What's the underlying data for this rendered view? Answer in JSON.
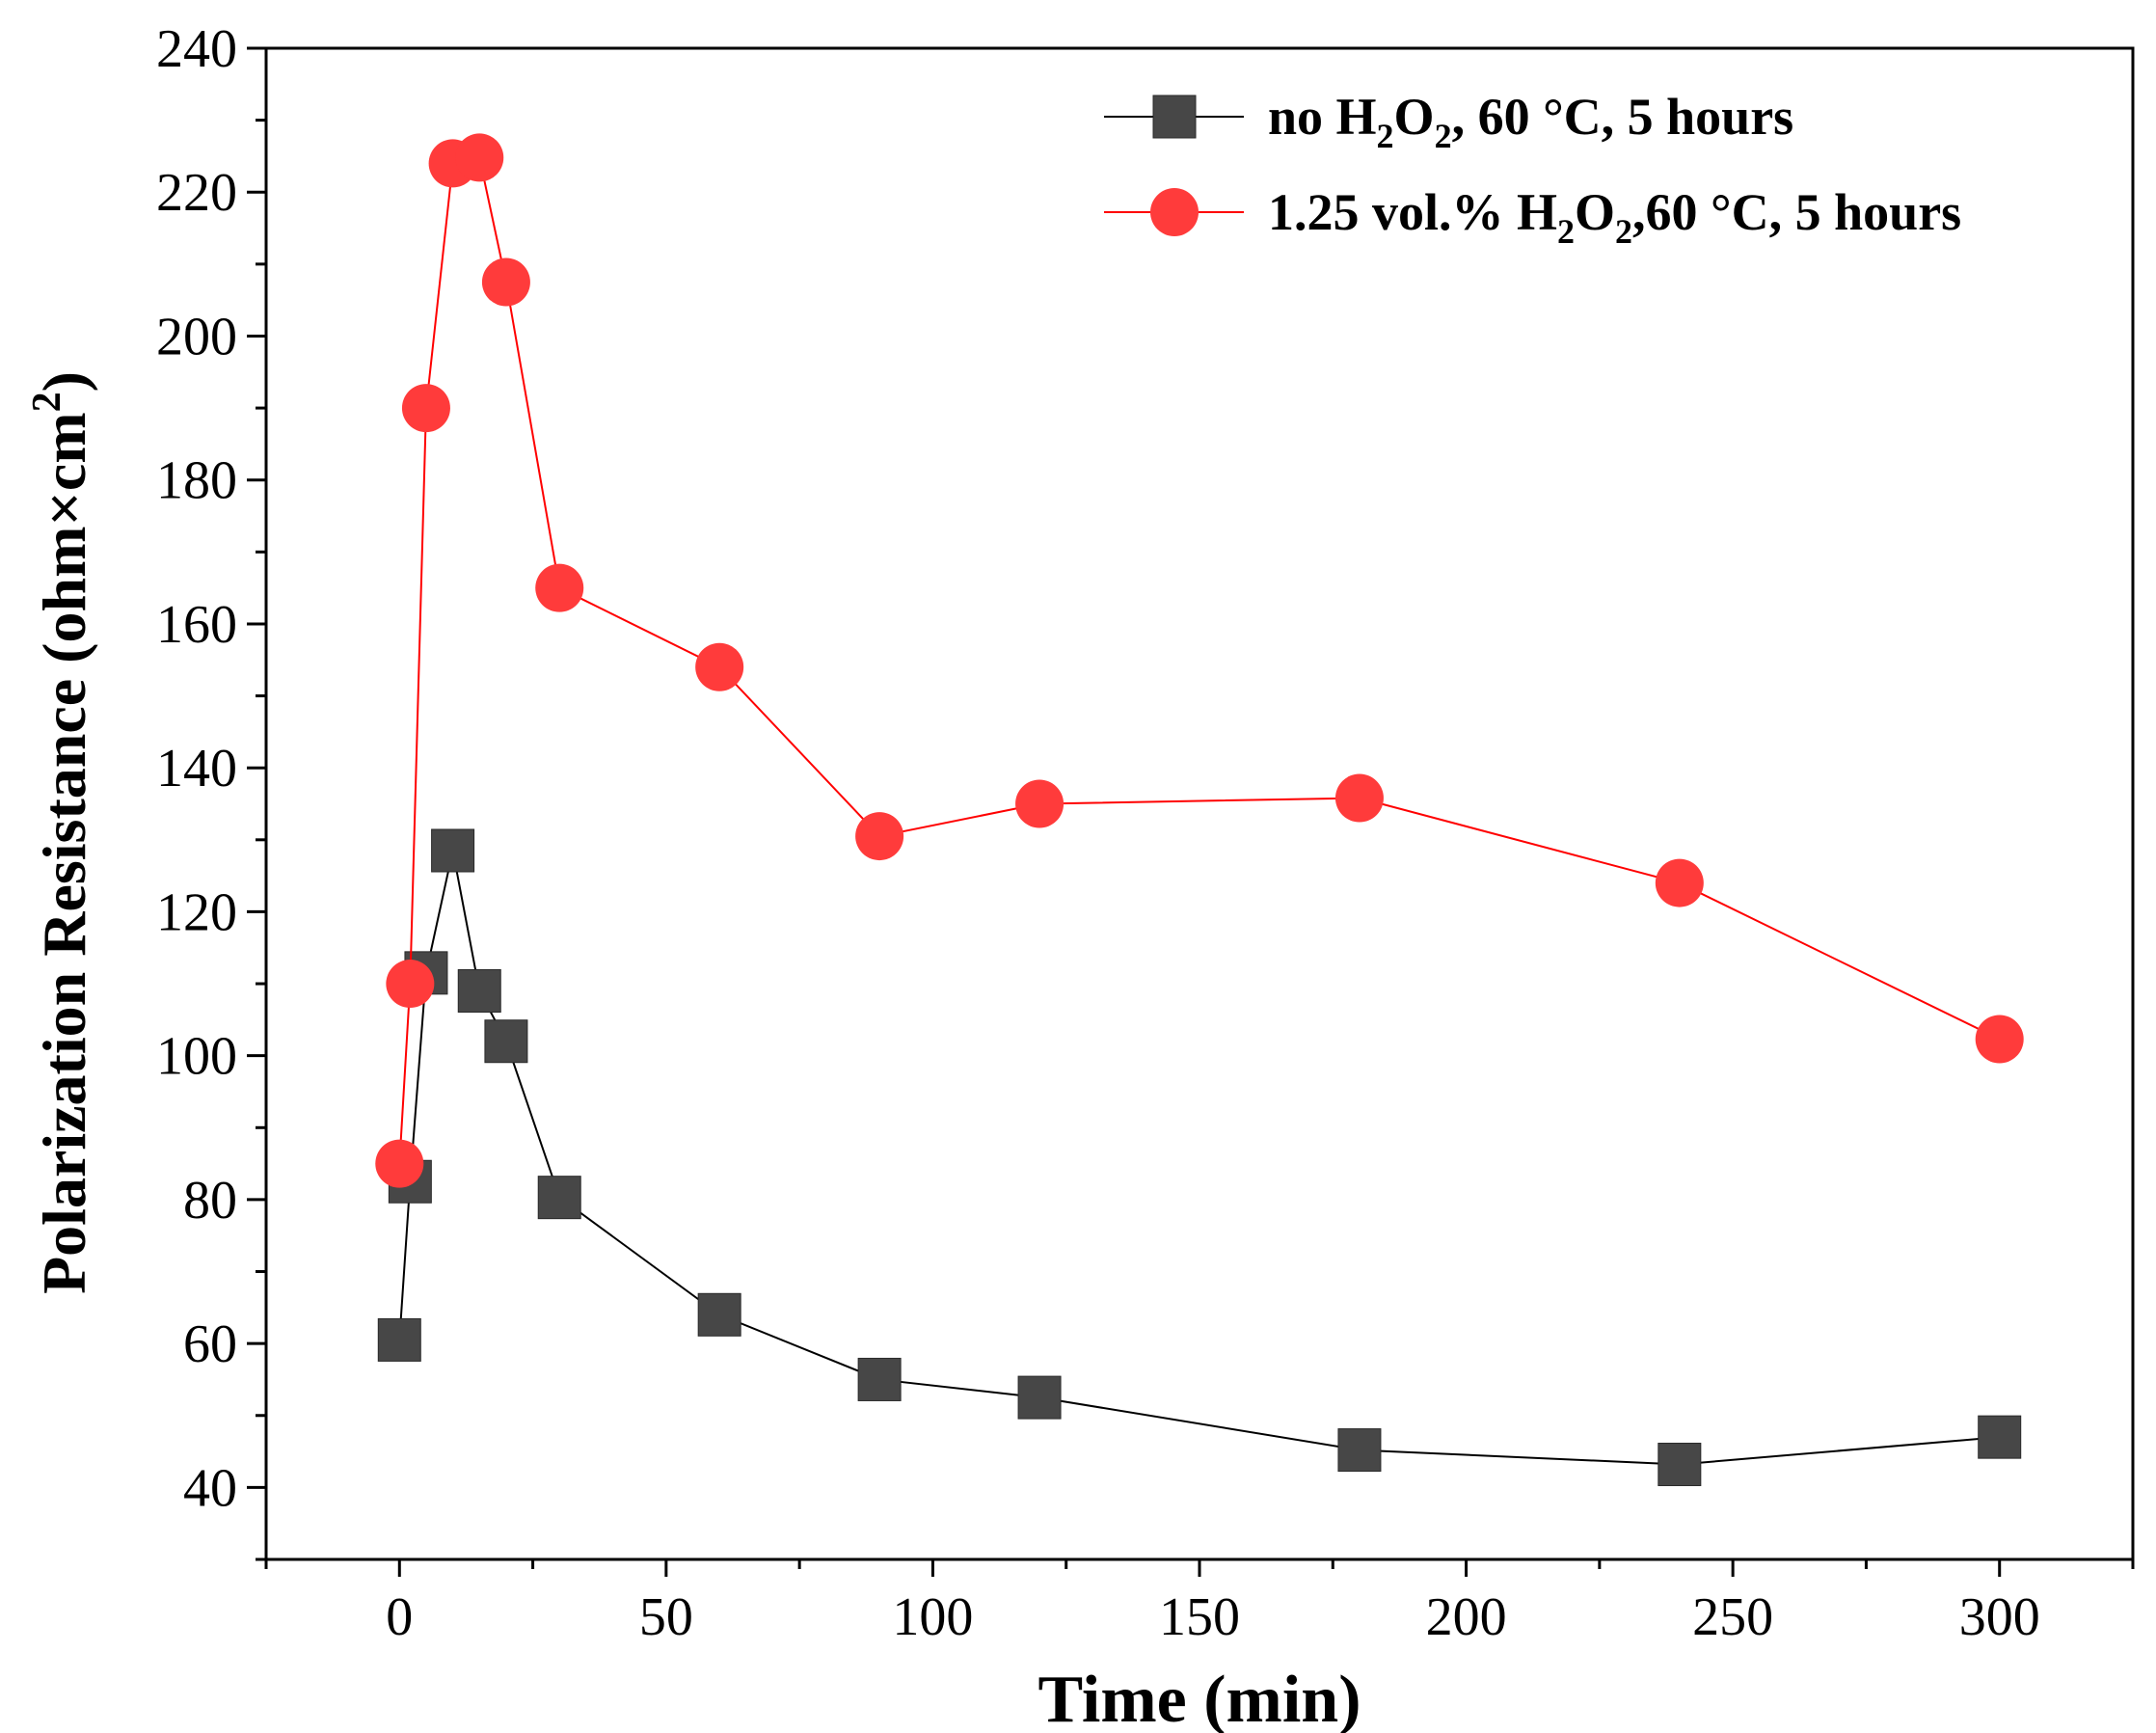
{
  "chart_data": {
    "type": "line",
    "title": "",
    "xlabel": "Time (min)",
    "ylabel": {
      "main": "Polarization Resistance (ohm×cm",
      "superscript": "2",
      "close": ")"
    },
    "xlim": [
      -25,
      325
    ],
    "ylim": [
      30,
      240
    ],
    "xticks": [
      0,
      50,
      100,
      150,
      200,
      250,
      300
    ],
    "yticks": [
      40,
      60,
      80,
      100,
      120,
      140,
      160,
      180,
      200,
      220,
      240
    ],
    "grid": false,
    "legend_position": "top-right",
    "series": [
      {
        "name": "no H2O2, 60 °C, 5 hours",
        "legend": {
          "pre": "no H",
          "sub1": "2",
          "mid": "O",
          "sub2": "2",
          "post": ", 60 °C, 5 hours"
        },
        "color": "#474747",
        "line_color": "#000000",
        "marker": "square",
        "x": [
          0,
          2,
          5,
          10,
          15,
          20,
          30,
          60,
          90,
          120,
          180,
          240,
          300
        ],
        "y": [
          60.5,
          82.5,
          111.5,
          128.5,
          109,
          102,
          80.3,
          64,
          55,
          52.5,
          45.2,
          43.2,
          47
        ]
      },
      {
        "name": "1.25 vol.% H2O2,60 °C, 5 hours",
        "legend": {
          "pre": "1.25 vol.% H",
          "sub1": "2",
          "mid": "O",
          "sub2": "2",
          "post": ",60 °C, 5 hours"
        },
        "color": "#ff3b3b",
        "line_color": "#ff0000",
        "marker": "circle",
        "x": [
          0,
          2,
          5,
          10,
          15,
          20,
          30,
          60,
          90,
          120,
          180,
          240,
          300
        ],
        "y": [
          85,
          110,
          190,
          224,
          224.8,
          207.5,
          165,
          154,
          130.5,
          135,
          135.8,
          124,
          102.3
        ]
      }
    ]
  }
}
